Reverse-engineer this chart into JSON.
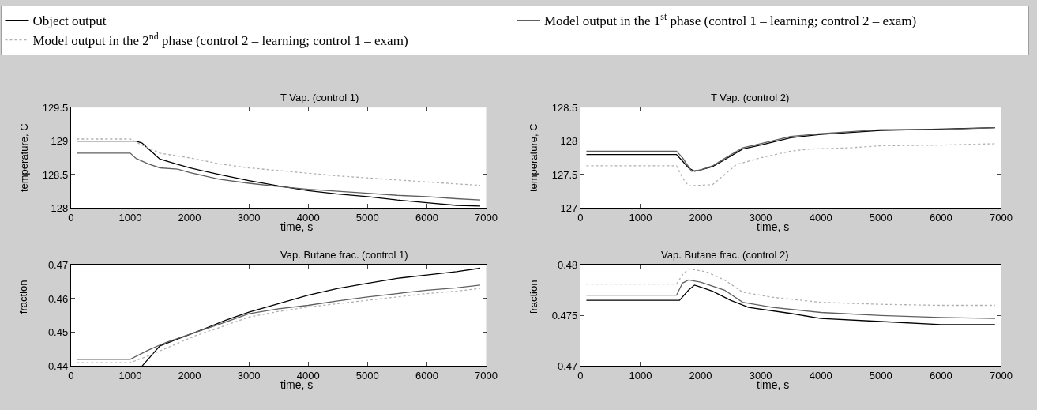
{
  "chart_data": [
    {
      "type": "line",
      "title": "T Vap. (control 1)",
      "xlabel": "time, s",
      "ylabel": "temperature, C",
      "legend": "top",
      "xlim": [
        0,
        7000
      ],
      "xticks": [
        0,
        1000,
        2000,
        3000,
        4000,
        5000,
        6000,
        7000
      ],
      "ylim": [
        128,
        129.5
      ],
      "yticks": [
        128,
        128.5,
        129,
        129.5
      ],
      "series": [
        {
          "name": "Object output",
          "color": "#000000",
          "line_style": "solid",
          "x": [
            100,
            1100,
            1200,
            1350,
            1500,
            1800,
            2000,
            2500,
            3000,
            3500,
            4000,
            4500,
            5000,
            5500,
            6000,
            6500,
            6900
          ],
          "values": [
            129,
            129,
            128.97,
            128.85,
            128.73,
            128.65,
            128.6,
            128.5,
            128.41,
            128.33,
            128.26,
            128.21,
            128.17,
            128.12,
            128.08,
            128.04,
            128.03
          ]
        },
        {
          "name": "Model output in the 1$^{st}$ phase (control 1 – learning; control 2 – exam)",
          "color": "#606060",
          "line_style": "solid",
          "x": [
            100,
            1000,
            1100,
            1300,
            1500,
            1800,
            2000,
            2500,
            3000,
            3500,
            4000,
            4500,
            5000,
            5500,
            6000,
            6500,
            6900
          ],
          "values": [
            128.82,
            128.82,
            128.74,
            128.66,
            128.6,
            128.58,
            128.53,
            128.43,
            128.37,
            128.32,
            128.28,
            128.25,
            128.22,
            128.19,
            128.17,
            128.14,
            128.12
          ]
        },
        {
          "name": "Model output in the 2$^{nd}$ phase (control 2 – learning; control 1 – exam)",
          "color": "#b0b0b0",
          "line_style": "dotted",
          "x": [
            100,
            1000,
            1200,
            1500,
            2000,
            2500,
            3000,
            3500,
            4000,
            4500,
            5000,
            5500,
            6000,
            6500,
            6900
          ],
          "values": [
            129.03,
            129.03,
            128.94,
            128.82,
            128.75,
            128.66,
            128.6,
            128.56,
            128.52,
            128.48,
            128.45,
            128.42,
            128.39,
            128.36,
            128.34
          ]
        }
      ]
    },
    {
      "type": "line",
      "title": "T Vap. (control 2)",
      "xlabel": "time, s",
      "ylabel": "temperature, C",
      "xlim": [
        0,
        7000
      ],
      "xticks": [
        0,
        1000,
        2000,
        3000,
        4000,
        5000,
        6000,
        7000
      ],
      "ylim": [
        127,
        128.5
      ],
      "yticks": [
        127,
        127.5,
        128,
        128.5
      ],
      "series": [
        {
          "color": "#000000",
          "line_style": "solid",
          "x": [
            100,
            1600,
            1700,
            1800,
            1900,
            2000,
            2200,
            2400,
            2700,
            3000,
            3500,
            4000,
            4500,
            5000,
            6000,
            6900
          ],
          "values": [
            127.8,
            127.8,
            127.7,
            127.6,
            127.55,
            127.57,
            127.62,
            127.72,
            127.88,
            127.94,
            128.05,
            128.1,
            128.13,
            128.16,
            128.18,
            128.2
          ]
        },
        {
          "color": "#606060",
          "line_style": "solid",
          "x": [
            100,
            1600,
            1700,
            1850,
            2000,
            2200,
            2400,
            2700,
            3000,
            3500,
            4000,
            4500,
            5000,
            6000,
            6900
          ],
          "values": [
            127.85,
            127.85,
            127.75,
            127.55,
            127.57,
            127.63,
            127.74,
            127.9,
            127.96,
            128.07,
            128.11,
            128.14,
            128.17,
            128.17,
            128.2
          ]
        },
        {
          "color": "#b0b0b0",
          "line_style": "dotted",
          "x": [
            100,
            1600,
            1700,
            1800,
            2200,
            2400,
            2600,
            3000,
            3500,
            3800,
            4500,
            5000,
            6000,
            6900
          ],
          "values": [
            127.63,
            127.63,
            127.45,
            127.33,
            127.35,
            127.5,
            127.65,
            127.75,
            127.85,
            127.88,
            127.9,
            127.93,
            127.94,
            127.96
          ]
        }
      ]
    },
    {
      "type": "line",
      "title": "Vap. Butane frac. (control 1)",
      "xlabel": "time, s",
      "ylabel": "fraction",
      "xlim": [
        0,
        7000
      ],
      "xticks": [
        0,
        1000,
        2000,
        3000,
        4000,
        5000,
        6000,
        7000
      ],
      "ylim": [
        0.44,
        0.47
      ],
      "yticks": [
        0.44,
        0.45,
        0.46,
        0.47
      ],
      "series": [
        {
          "color": "#000000",
          "line_style": "solid",
          "x": [
            1200,
            1350,
            1500,
            1800,
            2100,
            2600,
            3000,
            3500,
            4000,
            4500,
            5000,
            5500,
            6000,
            6500,
            6900
          ],
          "values": [
            0.44,
            0.443,
            0.446,
            0.448,
            0.45,
            0.4535,
            0.456,
            0.4585,
            0.461,
            0.463,
            0.4645,
            0.466,
            0.467,
            0.468,
            0.469
          ]
        },
        {
          "color": "#606060",
          "line_style": "solid",
          "x": [
            100,
            1000,
            1300,
            1600,
            2100,
            2600,
            3000,
            3500,
            4000,
            4500,
            5000,
            5500,
            6000,
            6500,
            6900
          ],
          "values": [
            0.442,
            0.442,
            0.4447,
            0.447,
            0.45,
            0.453,
            0.4555,
            0.457,
            0.458,
            0.4593,
            0.4605,
            0.4615,
            0.4625,
            0.4632,
            0.464
          ]
        },
        {
          "color": "#b0b0b0",
          "line_style": "dotted",
          "x": [
            100,
            1000,
            1300,
            1700,
            2100,
            2600,
            3000,
            3500,
            4000,
            4500,
            5000,
            5500,
            6000,
            6500,
            6900
          ],
          "values": [
            0.441,
            0.441,
            0.443,
            0.446,
            0.449,
            0.452,
            0.4545,
            0.4562,
            0.4575,
            0.4585,
            0.4595,
            0.4605,
            0.4615,
            0.4622,
            0.463
          ]
        }
      ]
    },
    {
      "type": "line",
      "title": "Vap. Butane frac. (control 2)",
      "xlabel": "time, s",
      "ylabel": "fraction",
      "xlim": [
        0,
        7000
      ],
      "xticks": [
        0,
        1000,
        2000,
        3000,
        4000,
        5000,
        6000,
        7000
      ],
      "ylim": [
        0.47,
        0.48
      ],
      "yticks": [
        0.47,
        0.475,
        0.48
      ],
      "series": [
        {
          "color": "#000000",
          "line_style": "solid",
          "x": [
            100,
            1650,
            1800,
            1900,
            2000,
            2200,
            2500,
            2800,
            3500,
            4000,
            5000,
            6000,
            6900
          ],
          "values": [
            0.4765,
            0.4765,
            0.4775,
            0.478,
            0.4778,
            0.4774,
            0.4765,
            0.4758,
            0.4752,
            0.4747,
            0.4744,
            0.4741,
            0.4741
          ]
        },
        {
          "color": "#606060",
          "line_style": "solid",
          "x": [
            100,
            1600,
            1700,
            1800,
            2000,
            2400,
            2700,
            3200,
            4000,
            5000,
            6000,
            6900
          ],
          "values": [
            0.477,
            0.477,
            0.4782,
            0.4785,
            0.4783,
            0.4775,
            0.4763,
            0.4758,
            0.4753,
            0.475,
            0.4748,
            0.4747
          ]
        },
        {
          "color": "#b0b0b0",
          "line_style": "dotted",
          "x": [
            100,
            1600,
            1700,
            1800,
            2100,
            2400,
            2700,
            3200,
            4000,
            5000,
            6000,
            6900
          ],
          "values": [
            0.4781,
            0.4781,
            0.479,
            0.4796,
            0.4793,
            0.4785,
            0.4773,
            0.4768,
            0.4763,
            0.4761,
            0.476,
            0.476
          ]
        }
      ]
    }
  ]
}
